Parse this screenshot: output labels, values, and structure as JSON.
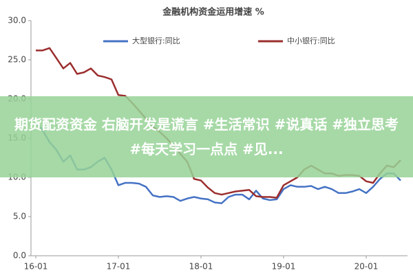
{
  "chart_data": {
    "type": "line",
    "title": "金融机构资金运用增速 %",
    "categories": [
      "16-01",
      null,
      null,
      null,
      null,
      null,
      null,
      null,
      null,
      null,
      null,
      null,
      "17-01",
      null,
      null,
      null,
      null,
      null,
      null,
      null,
      null,
      null,
      null,
      null,
      "18-01",
      null,
      null,
      null,
      null,
      null,
      null,
      null,
      null,
      null,
      null,
      null,
      "19-01",
      null,
      null,
      null,
      null,
      null,
      null,
      null,
      null,
      null,
      null,
      null,
      "20-01",
      null,
      null,
      null,
      null,
      null
    ],
    "series": [
      {
        "name": "大型银行:同比",
        "color": "#4472c4",
        "values": [
          17,
          16,
          14.5,
          13.5,
          12,
          12.8,
          11.0,
          11.0,
          11.3,
          12.0,
          12.5,
          11.0,
          9.0,
          9.3,
          9.3,
          9.2,
          8.8,
          7.7,
          7.5,
          7.6,
          7.5,
          7.0,
          7.3,
          7.5,
          7.3,
          7.2,
          6.8,
          6.7,
          7.5,
          7.8,
          7.8,
          7.2,
          8.3,
          7.3,
          7.1,
          7.2,
          8.5,
          9.0,
          8.8,
          8.8,
          8.9,
          8.5,
          8.8,
          8.5,
          8.0,
          8.0,
          8.2,
          8.5,
          8.0,
          8.8,
          9.8,
          10.5,
          10.5,
          9.6
        ]
      },
      {
        "name": "中小银行:同比",
        "color": "#9b2d2d",
        "values": [
          26.2,
          26.2,
          26.5,
          25.2,
          23.9,
          24.6,
          23.2,
          23.4,
          23.9,
          23.0,
          22.8,
          22.5,
          20.5,
          20.4,
          19.5,
          18.5,
          17.5,
          16.5,
          15.8,
          15.0,
          14.0,
          13.0,
          12.0,
          9.8,
          9.6,
          8.7,
          8.0,
          7.8,
          8.0,
          8.2,
          8.3,
          8.4,
          7.6,
          7.5,
          7.5,
          7.4,
          9.0,
          9.5,
          10.0,
          11.0,
          11.5,
          11.0,
          10.5,
          10.5,
          10.2,
          10.3,
          10.3,
          10.2,
          9.5,
          9.3,
          10.5,
          11.5,
          11.3,
          12.2
        ]
      }
    ],
    "ylim": [
      0,
      30
    ],
    "yticks": [
      {
        "value": 0,
        "label": "0.0"
      },
      {
        "value": 5,
        "label": "5.0"
      },
      {
        "value": 10,
        "label": "10.0"
      },
      {
        "value": 15,
        "label": "15.0"
      },
      {
        "value": 20,
        "label": "20.0"
      },
      {
        "value": 25,
        "label": "25.0"
      },
      {
        "value": 30,
        "label": "30.0"
      }
    ]
  },
  "overlay": {
    "text": "期货配资资金 右脑开发是谎言 #生活常识 #说真话 #独立思考 #每天学习一点点 #见..."
  }
}
